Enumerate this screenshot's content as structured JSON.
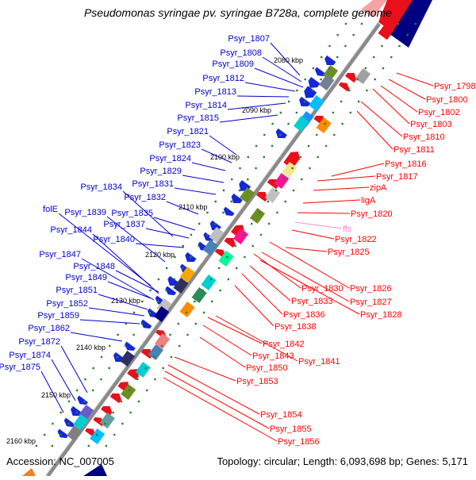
{
  "title": "Pseudomonas syringae pv. syringae B728a, complete genome",
  "footer": {
    "accession": "Accession: NC_007005",
    "summary": "Topology: circular; Length: 6,093,698 bp; Genes: 5,171"
  },
  "colors": {
    "left_label": "#0000cc",
    "right_label": "#ff0000",
    "rna_label": "#ff88cc",
    "backbone": "#808080",
    "tick_dot": "#2e7d2e",
    "forward_feature": "#e8101a",
    "reverse_feature": "#1428d8"
  },
  "scale_ticks": [
    {
      "label": "2080 kbp"
    },
    {
      "label": "2090 kbp"
    },
    {
      "label": "2100 kbp"
    },
    {
      "label": "2110 kbp"
    },
    {
      "label": "2120 kbp"
    },
    {
      "label": "2130 kbp"
    },
    {
      "label": "2140 kbp"
    },
    {
      "label": "2150 kbp"
    },
    {
      "label": "2160 kbp"
    }
  ],
  "left_labels": [
    "Psyr_1807",
    "Psyr_1808",
    "Psyr_1809",
    "Psyr_1812",
    "Psyr_1813",
    "Psyr_1814",
    "Psyr_1815",
    "Psyr_1821",
    "Psyr_1823",
    "Psyr_1824",
    "Psyr_1829",
    "Psyr_1831",
    "Psyr_1834",
    "Psyr_1832",
    "folE",
    "Psyr_1839",
    "Psyr_1835",
    "Psyr_1837",
    "Psyr_1844",
    "Psyr_1840",
    "Psyr_1847",
    "Psyr_1848",
    "Psyr_1849",
    "Psyr_1851",
    "Psyr_1852",
    "Psyr_1859",
    "Psyr_1862",
    "Psyr_1872",
    "Psyr_1874",
    "Psyr_1875"
  ],
  "right_labels": [
    "Psyr_1798",
    "Psyr_1800",
    "Psyr_1802",
    "Psyr_1803",
    "Psyr_1810",
    "Psyr_1811",
    "Psyr_1816",
    "Psyr_1817",
    "zipA",
    "ligA",
    "Psyr_1820",
    "ffs",
    "Psyr_1822",
    "Psyr_1825",
    "Psyr_1830",
    "Psyr_1826",
    "Psyr_1833",
    "Psyr_1827",
    "Psyr_1836",
    "Psyr_1828",
    "Psyr_1838",
    "Psyr_1842",
    "Psyr_1843",
    "Psyr_1841",
    "Psyr_1850",
    "Psyr_1853",
    "Psyr_1854",
    "Psyr_1855",
    "Psyr_1856"
  ]
}
